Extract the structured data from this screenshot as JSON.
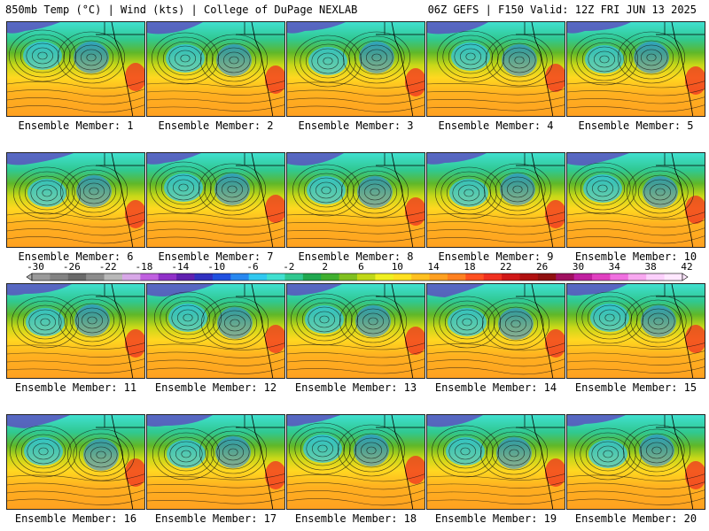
{
  "header": {
    "left": "850mb Temp (°C) | Wind (kts) | College of DuPage NEXLAB",
    "right": "06Z GEFS | F150 Valid: 12Z FRI JUN 13 2025"
  },
  "caption_prefix": "Ensemble Member:",
  "members": [
    1,
    2,
    3,
    4,
    5,
    6,
    7,
    8,
    9,
    10,
    11,
    12,
    13,
    14,
    15,
    16,
    17,
    18,
    19,
    20
  ],
  "colorbar": {
    "labels": [
      "-30",
      "-26",
      "-22",
      "-18",
      "-14",
      "-10",
      "-6",
      "-2",
      "2",
      "6",
      "10",
      "14",
      "18",
      "22",
      "26",
      "30",
      "34",
      "38",
      "42"
    ],
    "colors": [
      "#9a9a9a",
      "#828282",
      "#6a6a6a",
      "#8c8c8c",
      "#b8b8b8",
      "#d8a8e8",
      "#c060e0",
      "#9030c8",
      "#6020b0",
      "#3030c0",
      "#2050e0",
      "#2888f0",
      "#30c8f0",
      "#40e0d0",
      "#30c890",
      "#20a850",
      "#40b030",
      "#80c020",
      "#c0d818",
      "#f0f020",
      "#ffe020",
      "#ffc020",
      "#ffa020",
      "#ff8020",
      "#ff5020",
      "#f03020",
      "#d01818",
      "#b01010",
      "#901010",
      "#a01060",
      "#c020a0",
      "#e040c0",
      "#f070e0",
      "#f8a8f0",
      "#fcd0fc",
      "#ffe8ff"
    ]
  }
}
